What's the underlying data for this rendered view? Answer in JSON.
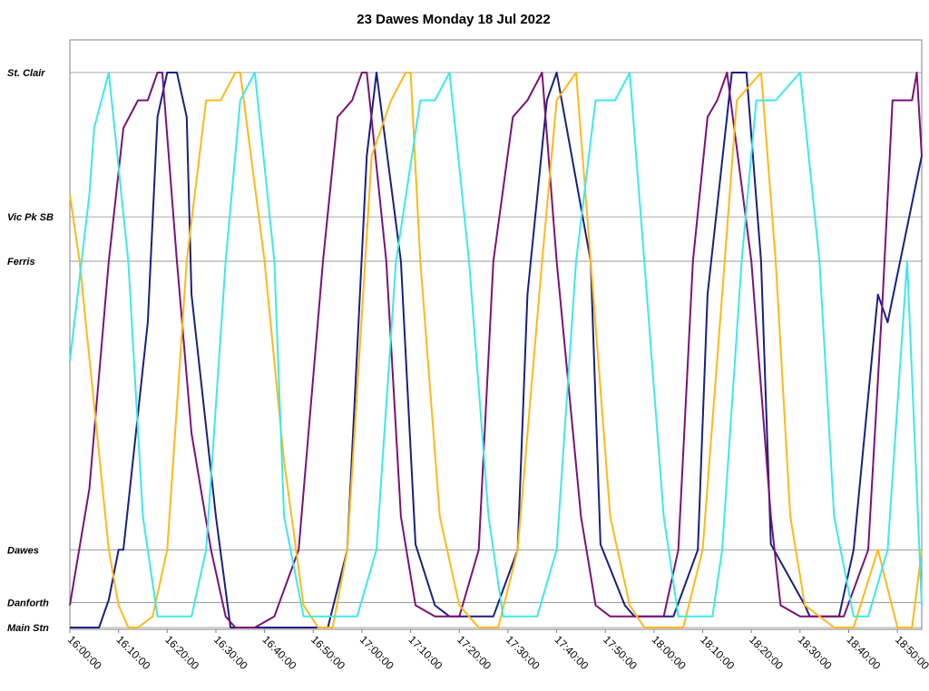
{
  "chart_data": {
    "type": "line",
    "title": "23 Dawes Monday 18 Jul 2022",
    "xlabel": "",
    "ylabel": "",
    "x_unit": "time of day",
    "xlim": [
      "16:00:00",
      "18:55:00"
    ],
    "x_ticks": [
      "16:00:00",
      "16:10:00",
      "16:20:00",
      "16:30:00",
      "16:40:00",
      "16:50:00",
      "17:00:00",
      "17:10:00",
      "17:20:00",
      "17:30:00",
      "17:40:00",
      "17:50:00",
      "18:00:00",
      "18:10:00",
      "18:20:00",
      "18:30:00",
      "18:40:00",
      "18:50:00"
    ],
    "y_stops": [
      {
        "label": "St. Clair",
        "position": 100
      },
      {
        "label": "Vic Pk SB",
        "position": 74
      },
      {
        "label": "Ferris",
        "position": 66
      },
      {
        "label": "Dawes",
        "position": 14
      },
      {
        "label": "Danforth",
        "position": 4.5
      },
      {
        "label": "Main Stn",
        "position": 0
      }
    ],
    "ylim": [
      0,
      100
    ],
    "grid": "horizontal at stops",
    "legend": "none",
    "series": [
      {
        "color": "#1a1f80",
        "x": [
          "16:00:00",
          "16:06:00",
          "16:08:00",
          "16:10:00",
          "16:11:00",
          "16:16:00",
          "16:18:00",
          "16:20:00",
          "16:22:00",
          "16:24:00",
          "16:25:00",
          "16:30:00",
          "16:33:00",
          "16:37:00",
          "16:40:00",
          "16:46:00",
          "16:47:00",
          "16:53:00",
          "16:57:00",
          "17:01:00",
          "17:03:00",
          "17:08:00",
          "17:11:00",
          "17:15:00",
          "17:18:00",
          "17:24:00",
          "17:27:00",
          "17:32:00",
          "17:34:00",
          "17:38:00",
          "17:40:00",
          "17:47:00",
          "17:49:00",
          "17:54:00",
          "17:56:00",
          "18:00:00",
          "18:04:00",
          "18:09:00",
          "18:11:00",
          "18:16:00",
          "18:19:00",
          "18:22:00",
          "18:24:00",
          "18:31:00",
          "18:32:00",
          "18:38:00",
          "18:41:00",
          "18:46:00",
          "18:48:00",
          "18:55:00"
        ],
        "y": [
          0,
          0,
          5,
          14,
          14,
          55,
          92,
          100,
          100,
          92,
          60,
          20,
          0,
          0,
          0,
          0,
          0,
          0,
          14,
          85,
          100,
          66,
          15,
          4,
          2,
          2,
          2,
          14,
          60,
          95,
          100,
          66,
          15,
          4,
          2,
          2,
          2,
          14,
          60,
          100,
          100,
          66,
          15,
          4,
          2,
          2,
          14,
          60,
          55,
          85
        ]
      },
      {
        "color": "#7b1177",
        "x": [
          "16:00:00",
          "16:04:00",
          "16:08:00",
          "16:11:00",
          "16:14:00",
          "16:16:00",
          "16:18:00",
          "16:19:00",
          "16:22:00",
          "16:25:00",
          "16:29:00",
          "16:32:00",
          "16:34:00",
          "16:38:00",
          "16:42:00",
          "16:47:00",
          "16:52:00",
          "16:55:00",
          "16:58:00",
          "17:00:00",
          "17:01:00",
          "17:05:00",
          "17:08:00",
          "17:11:00",
          "17:15:00",
          "17:20:00",
          "17:24:00",
          "17:27:00",
          "17:31:00",
          "17:34:00",
          "17:37:00",
          "17:40:00",
          "17:45:00",
          "17:48:00",
          "17:51:00",
          "17:58:00",
          "18:02:00",
          "18:05:00",
          "18:08:00",
          "18:11:00",
          "18:13:00",
          "18:15:00",
          "18:20:00",
          "18:24:00",
          "18:26:00",
          "18:30:00",
          "18:35:00",
          "18:39:00",
          "18:44:00",
          "18:47:00",
          "18:49:00",
          "18:53:00",
          "18:54:00",
          "18:55:00"
        ],
        "y": [
          4,
          25,
          66,
          90,
          95,
          95,
          100,
          100,
          66,
          35,
          14,
          2,
          0,
          0,
          2,
          14,
          66,
          92,
          95,
          100,
          100,
          66,
          20,
          4,
          2,
          2,
          14,
          66,
          92,
          95,
          100,
          66,
          20,
          4,
          2,
          2,
          2,
          14,
          66,
          92,
          95,
          100,
          66,
          20,
          4,
          2,
          2,
          2,
          14,
          60,
          95,
          95,
          100,
          85
        ]
      },
      {
        "color": "#ffb818",
        "x": [
          "16:00:00",
          "16:02:00",
          "16:05:00",
          "16:08:00",
          "16:10:00",
          "16:12:00",
          "16:14:00",
          "16:17:00",
          "16:20:00",
          "16:24:00",
          "16:28:00",
          "16:31:00",
          "16:34:00",
          "16:35:00",
          "16:40:00",
          "16:44:00",
          "16:48:00",
          "16:51:00",
          "16:54:00",
          "16:57:00",
          "17:02:00",
          "17:06:00",
          "17:09:00",
          "17:10:00",
          "17:12:00",
          "17:16:00",
          "17:20:00",
          "17:24:00",
          "17:28:00",
          "17:32:00",
          "17:37:00",
          "17:40:00",
          "17:44:00",
          "17:47:00",
          "17:51:00",
          "17:55:00",
          "17:58:00",
          "18:02:00",
          "18:06:00",
          "18:10:00",
          "18:14:00",
          "18:17:00",
          "18:22:00",
          "18:25:00",
          "18:28:00",
          "18:31:00",
          "18:37:00",
          "18:41:00",
          "18:46:00",
          "18:50:00",
          "18:53:00",
          "18:55:00"
        ],
        "y": [
          78,
          66,
          40,
          14,
          4,
          0,
          0,
          2,
          14,
          66,
          95,
          95,
          100,
          100,
          66,
          30,
          4,
          0,
          0,
          14,
          85,
          95,
          100,
          100,
          66,
          20,
          4,
          0,
          0,
          14,
          66,
          95,
          100,
          66,
          20,
          4,
          0,
          0,
          0,
          14,
          60,
          95,
          100,
          66,
          20,
          4,
          0,
          0,
          14,
          0,
          0,
          14
        ]
      },
      {
        "color": "#3ee8e8",
        "x": [
          "16:00:00",
          "16:04:00",
          "16:05:00",
          "16:08:00",
          "16:12:00",
          "16:15:00",
          "16:18:00",
          "16:21:00",
          "16:25:00",
          "16:28:00",
          "16:32:00",
          "16:35:00",
          "16:38:00",
          "16:42:00",
          "16:44:00",
          "16:48:00",
          "16:52:00",
          "16:56:00",
          "16:59:00",
          "17:03:00",
          "17:07:00",
          "17:12:00",
          "17:15:00",
          "17:18:00",
          "17:22:00",
          "17:26:00",
          "17:29:00",
          "17:33:00",
          "17:36:00",
          "17:40:00",
          "17:44:00",
          "17:48:00",
          "17:52:00",
          "17:55:00",
          "17:58:00",
          "18:02:00",
          "18:05:00",
          "18:09:00",
          "18:12:00",
          "18:14:00",
          "18:18:00",
          "18:21:00",
          "18:25:00",
          "18:30:00",
          "18:34:00",
          "18:37:00",
          "18:41:00",
          "18:44:00",
          "18:48:00",
          "18:52:00",
          "18:55:00"
        ],
        "y": [
          48,
          78,
          90,
          100,
          66,
          20,
          2,
          2,
          2,
          14,
          66,
          95,
          100,
          66,
          20,
          2,
          2,
          2,
          2,
          14,
          66,
          95,
          95,
          100,
          66,
          20,
          2,
          2,
          2,
          14,
          66,
          95,
          95,
          100,
          66,
          20,
          2,
          2,
          2,
          14,
          66,
          95,
          95,
          100,
          66,
          20,
          2,
          2,
          14,
          66,
          4
        ]
      }
    ]
  }
}
